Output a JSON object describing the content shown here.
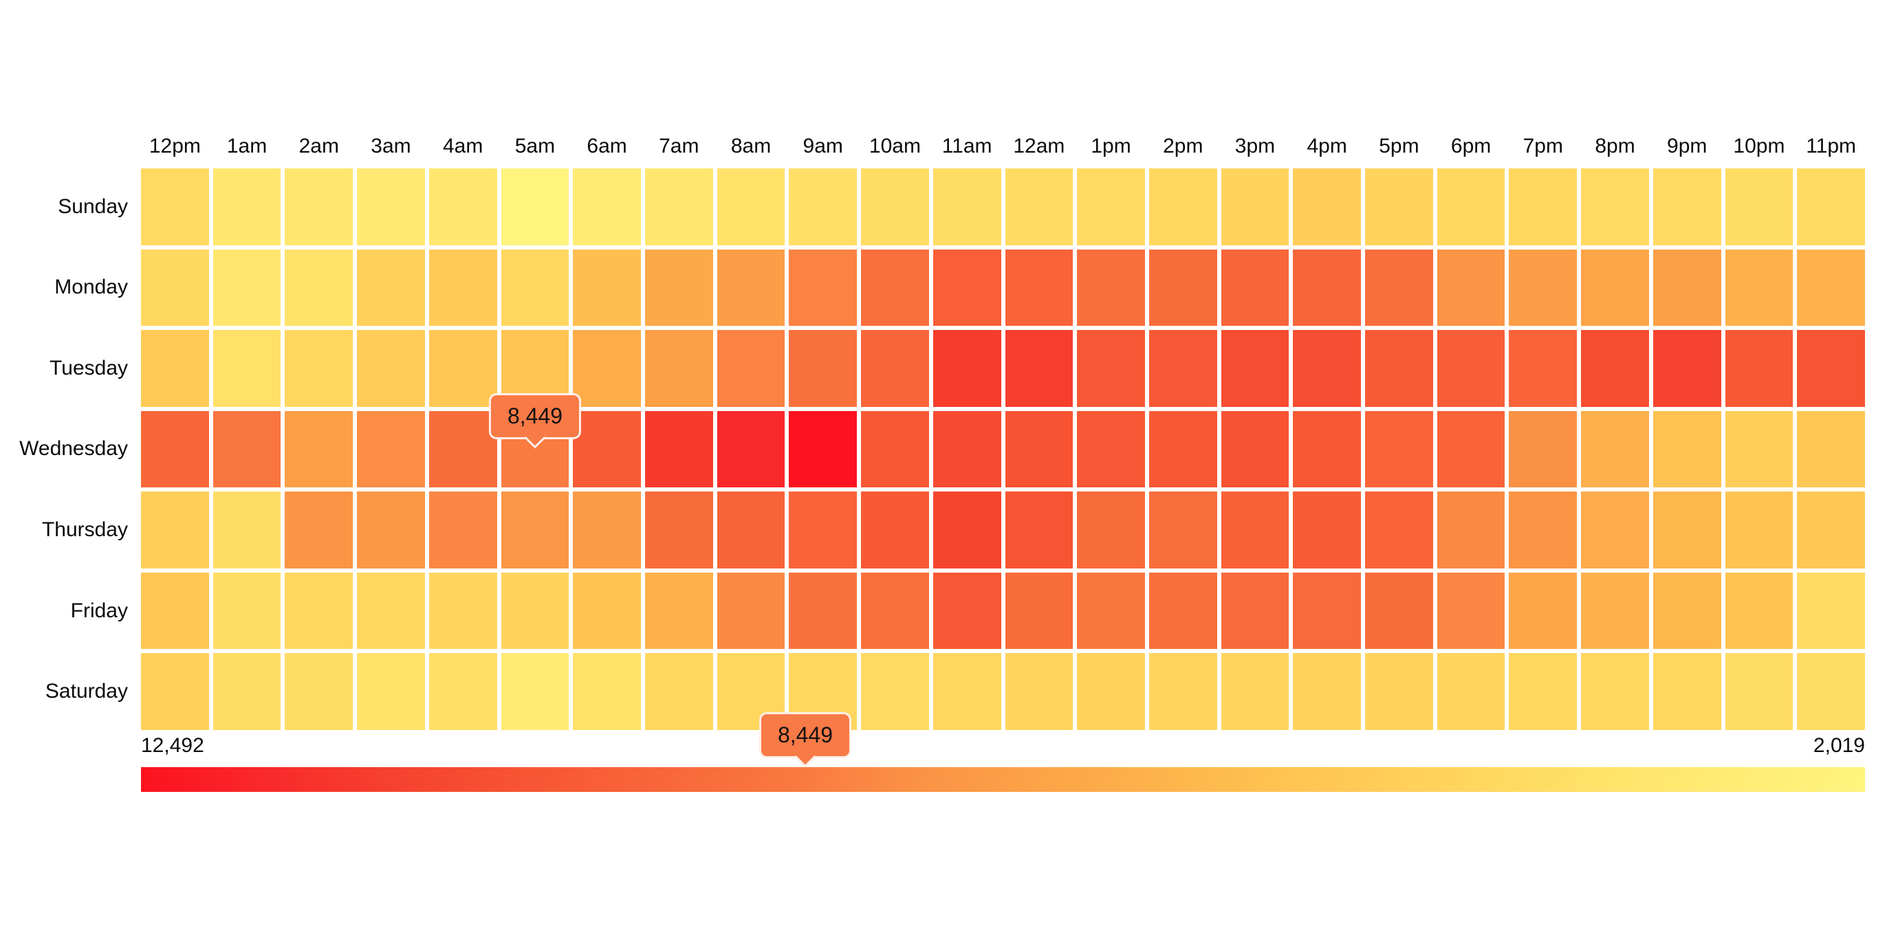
{
  "page": {
    "background": "#ffffff"
  },
  "chart_data": {
    "type": "heatmap",
    "x_labels": [
      "12pm",
      "1am",
      "2am",
      "3am",
      "4am",
      "5am",
      "6am",
      "7am",
      "8am",
      "9am",
      "10am",
      "11am",
      "12am",
      "1pm",
      "2pm",
      "3pm",
      "4pm",
      "5pm",
      "6pm",
      "7pm",
      "8pm",
      "9pm",
      "10pm",
      "11pm"
    ],
    "y_labels": [
      "Sunday",
      "Monday",
      "Tuesday",
      "Wednesday",
      "Thursday",
      "Friday",
      "Saturday"
    ],
    "values": [
      [
        4200,
        3300,
        3300,
        3050,
        3300,
        2019,
        2850,
        3250,
        3650,
        3800,
        3950,
        4000,
        4050,
        4200,
        4350,
        4550,
        4950,
        4500,
        4350,
        4400,
        4200,
        4200,
        4000,
        4100
      ],
      [
        4250,
        3300,
        3600,
        4750,
        5150,
        4350,
        5750,
        6750,
        7250,
        8250,
        8930,
        9700,
        9500,
        8980,
        9100,
        9330,
        9330,
        8950,
        7700,
        7260,
        7000,
        7150,
        6420,
        6380
      ],
      [
        5100,
        3750,
        4350,
        5000,
        5350,
        5500,
        6600,
        7150,
        8250,
        8880,
        9350,
        11150,
        11100,
        10050,
        10000,
        10520,
        10430,
        9870,
        9780,
        9480,
        10480,
        10920,
        9960,
        10200
      ],
      [
        9300,
        8700,
        7200,
        7900,
        9100,
        8449,
        9820,
        11170,
        11760,
        12492,
        9960,
        10560,
        10240,
        10050,
        9960,
        10240,
        9940,
        9480,
        9480,
        7800,
        6500,
        5550,
        4900,
        5350
      ],
      [
        4900,
        3950,
        7700,
        7500,
        8100,
        7600,
        7400,
        9100,
        9440,
        9480,
        9960,
        10830,
        10200,
        9150,
        9060,
        9620,
        9800,
        9480,
        8050,
        7700,
        6650,
        6150,
        5550,
        5300
      ],
      [
        5350,
        3950,
        4350,
        4400,
        4450,
        4600,
        5600,
        6450,
        8000,
        8800,
        8930,
        10050,
        9150,
        8600,
        9010,
        9200,
        9200,
        9100,
        8100,
        6950,
        6400,
        6150,
        5600,
        4050
      ],
      [
        4750,
        3900,
        3900,
        3600,
        3800,
        2900,
        3650,
        4350,
        4350,
        4400,
        4150,
        4400,
        4450,
        4550,
        4450,
        4450,
        4600,
        4550,
        4450,
        4400,
        4350,
        4400,
        4000,
        4000
      ]
    ],
    "value_min": 2019,
    "value_max": 12492,
    "legend": {
      "left_label": "12,492",
      "right_label": "2,019",
      "direction": "high-to-low"
    },
    "tooltips": [
      {
        "label": "8,449",
        "value": 8449,
        "target": "cell",
        "day": "Wednesday",
        "hour": "5am"
      },
      {
        "label": "8,449",
        "value": 8449,
        "target": "legend",
        "fraction_from_left": 0.386
      }
    ],
    "colors": {
      "tooltip_fill": "#F87A46",
      "grid_gap": "#ffffff",
      "colormap_stops": [
        {
          "t": 0.0,
          "color": "#FEF47E"
        },
        {
          "t": 0.12,
          "color": "#FFE76F"
        },
        {
          "t": 0.22,
          "color": "#FFD75F"
        },
        {
          "t": 0.34,
          "color": "#FFC351"
        },
        {
          "t": 0.45,
          "color": "#FCAA49"
        },
        {
          "t": 0.55,
          "color": "#FB9245"
        },
        {
          "t": 0.62,
          "color": "#F97940"
        },
        {
          "t": 0.7,
          "color": "#F8663A"
        },
        {
          "t": 0.78,
          "color": "#F75433"
        },
        {
          "t": 0.86,
          "color": "#F5402E"
        },
        {
          "t": 0.93,
          "color": "#F9282B"
        },
        {
          "t": 1.0,
          "color": "#FC1220"
        }
      ]
    }
  }
}
